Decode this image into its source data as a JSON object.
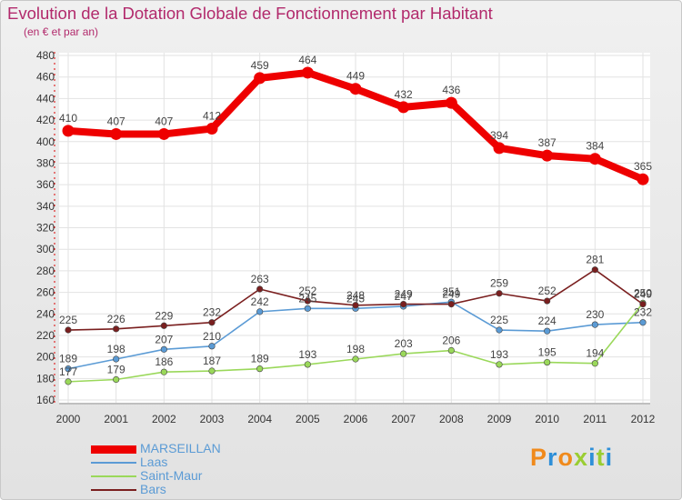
{
  "header": {
    "title": "Evolution de la Dotation Globale de Fonctionnement par Habitant",
    "subtitle": "(en € et par an)"
  },
  "logo": {
    "letters": [
      "P",
      "r",
      "o",
      "x",
      "i",
      "t",
      "i"
    ],
    "colors": [
      "#f08a1c",
      "#2e8fd8",
      "#f08a1c",
      "#9acd32",
      "#2e8fd8",
      "#9acd32",
      "#2e8fd8"
    ]
  },
  "chart_data": {
    "type": "line",
    "title": "Evolution de la Dotation Globale de Fonctionnement par Habitant",
    "subtitle": "(en € et par an)",
    "xlabel": "",
    "ylabel": "",
    "x": [
      "2000",
      "2001",
      "2002",
      "2003",
      "2004",
      "2005",
      "2006",
      "2007",
      "2008",
      "2009",
      "2010",
      "2011",
      "2012"
    ],
    "ylim": [
      160,
      480
    ],
    "yticks": [
      160,
      180,
      200,
      220,
      240,
      260,
      280,
      300,
      320,
      340,
      360,
      380,
      400,
      420,
      440,
      460,
      480
    ],
    "grid": true,
    "legend_position": "bottom-left",
    "series": [
      {
        "name": "MARSEILLAN",
        "color": "#ee0000",
        "values": [
          410,
          407,
          407,
          412,
          459,
          464,
          449,
          432,
          436,
          394,
          387,
          384,
          365
        ]
      },
      {
        "name": "Laas",
        "color": "#5b9bd5",
        "values": [
          189,
          198,
          207,
          210,
          242,
          245,
          245,
          247,
          251,
          225,
          224,
          230,
          232
        ]
      },
      {
        "name": "Saint-Maur",
        "color": "#9ad85a",
        "values": [
          177,
          179,
          186,
          187,
          189,
          193,
          198,
          203,
          206,
          193,
          195,
          194,
          250
        ]
      },
      {
        "name": "Bars",
        "color": "#7a1f1f",
        "values": [
          225,
          226,
          229,
          232,
          263,
          252,
          248,
          249,
          249,
          259,
          252,
          281,
          249
        ]
      }
    ]
  }
}
